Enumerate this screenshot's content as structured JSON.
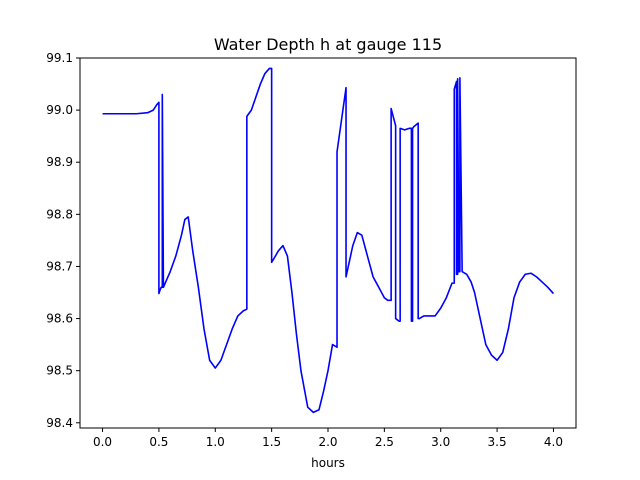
{
  "chart_data": {
    "type": "line",
    "title": "Water Depth h at gauge 115",
    "xlabel": "hours",
    "ylabel": "",
    "xlim": [
      -0.2,
      4.2
    ],
    "ylim": [
      98.39,
      99.1
    ],
    "xticks": [
      0.0,
      0.5,
      1.0,
      1.5,
      2.0,
      2.5,
      3.0,
      3.5,
      4.0
    ],
    "xtick_labels": [
      "0.0",
      "0.5",
      "1.0",
      "1.5",
      "2.0",
      "2.5",
      "3.0",
      "3.5",
      "4.0"
    ],
    "yticks": [
      98.4,
      98.5,
      98.6,
      98.7,
      98.8,
      98.9,
      99.0,
      99.1
    ],
    "ytick_labels": [
      "98.4",
      "98.5",
      "98.6",
      "98.7",
      "98.8",
      "98.9",
      "99.0",
      "99.1"
    ],
    "grid": false,
    "series": [
      {
        "color": "#0000ff",
        "x": [
          0.0,
          0.2,
          0.3,
          0.4,
          0.45,
          0.48,
          0.5,
          0.5,
          0.51,
          0.52,
          0.53,
          0.53,
          0.54,
          0.56,
          0.6,
          0.65,
          0.7,
          0.73,
          0.76,
          0.8,
          0.85,
          0.9,
          0.95,
          1.0,
          1.05,
          1.1,
          1.15,
          1.2,
          1.25,
          1.28,
          1.28,
          1.32,
          1.36,
          1.4,
          1.44,
          1.48,
          1.5,
          1.5,
          1.52,
          1.56,
          1.6,
          1.64,
          1.68,
          1.72,
          1.76,
          1.82,
          1.87,
          1.92,
          1.96,
          2.0,
          2.04,
          2.08,
          2.08,
          2.16,
          2.16,
          2.18,
          2.22,
          2.26,
          2.3,
          2.35,
          2.4,
          2.45,
          2.5,
          2.53,
          2.56,
          2.56,
          2.6,
          2.6,
          2.63,
          2.64,
          2.64,
          2.68,
          2.72,
          2.74,
          2.74,
          2.75,
          2.75,
          2.76,
          2.8,
          2.8,
          2.81,
          2.85,
          2.9,
          2.95,
          3.0,
          3.05,
          3.1,
          3.12,
          3.12,
          3.14,
          3.14,
          3.15,
          3.15,
          3.16,
          3.16,
          3.17,
          3.17,
          3.19,
          3.23,
          3.27,
          3.3,
          3.35,
          3.4,
          3.45,
          3.5,
          3.55,
          3.6,
          3.65,
          3.7,
          3.75,
          3.8,
          3.85,
          3.9,
          3.95,
          4.0
        ],
        "y": [
          98.993,
          98.993,
          98.993,
          98.995,
          99.0,
          99.01,
          99.015,
          98.648,
          98.655,
          98.66,
          98.66,
          99.03,
          98.66,
          98.67,
          98.69,
          98.72,
          98.76,
          98.79,
          98.795,
          98.73,
          98.66,
          98.58,
          98.52,
          98.505,
          98.52,
          98.55,
          98.58,
          98.605,
          98.615,
          98.618,
          98.988,
          99.0,
          99.025,
          99.05,
          99.07,
          99.08,
          99.08,
          98.708,
          98.715,
          98.73,
          98.74,
          98.72,
          98.65,
          98.57,
          98.5,
          98.43,
          98.42,
          98.425,
          98.46,
          98.5,
          98.55,
          98.545,
          98.92,
          99.043,
          98.68,
          98.7,
          98.74,
          98.765,
          98.76,
          98.72,
          98.68,
          98.66,
          98.64,
          98.635,
          98.635,
          99.003,
          98.97,
          98.6,
          98.595,
          98.595,
          98.965,
          98.962,
          98.965,
          98.965,
          98.595,
          98.595,
          98.965,
          98.968,
          98.975,
          98.6,
          98.6,
          98.605,
          98.605,
          98.605,
          98.62,
          98.64,
          98.668,
          98.668,
          99.04,
          99.055,
          98.685,
          98.685,
          99.06,
          98.695,
          98.69,
          98.69,
          99.062,
          98.69,
          98.685,
          98.67,
          98.65,
          98.6,
          98.55,
          98.53,
          98.52,
          98.535,
          98.58,
          98.64,
          98.67,
          98.685,
          98.687,
          98.68,
          98.67,
          98.66,
          98.648
        ]
      }
    ]
  }
}
